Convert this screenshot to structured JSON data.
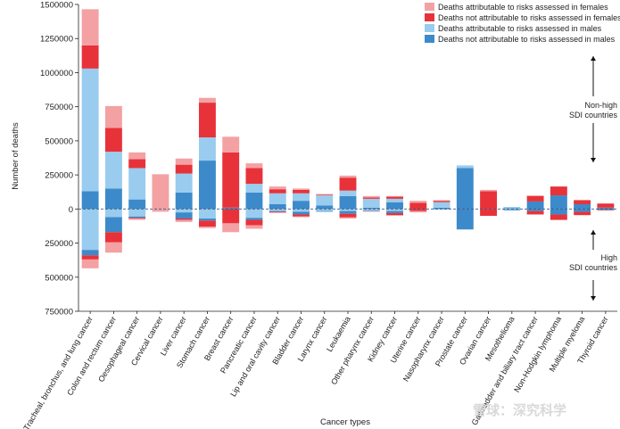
{
  "chart_data": {
    "type": "bar",
    "xlabel": "Cancer types",
    "ylabel": "Number of deaths",
    "ylim": [
      -750000,
      1500000
    ],
    "y_ticks": [
      -750000,
      -500000,
      -250000,
      0,
      250000,
      500000,
      750000,
      1000000,
      1250000,
      1500000
    ],
    "y_tick_labels": [
      "750000",
      "500000",
      "250000",
      "0",
      "250000",
      "500000",
      "750000",
      "1000000",
      "1250000",
      "1500000"
    ],
    "grid": false,
    "legend_position": "top-right",
    "categories": [
      "Tracheal, bronchus, and lung cancer",
      "Colon and rectum cancer",
      "Oesophageal cancer",
      "Cervical cancer",
      "Liver cancer",
      "Stomach cancer",
      "Breast cancer",
      "Pancreatic cancer",
      "Lip and oral cavity cancer",
      "Bladder cancer",
      "Larynx cancer",
      "Leukaemia",
      "Other pharynx cancer",
      "Kidney cancer",
      "Uterine cancer",
      "Nasopharynx cancer",
      "Prostate cancer",
      "Ovarian cancer",
      "Mesothelioma",
      "Gallbladder and biliary tract cancer",
      "Non-Hodgkin lymphoma",
      "Multiple myeloma",
      "Thyroid cancer"
    ],
    "series": [
      {
        "name": "Deaths attributable to risks assessed in females",
        "color": "#f4a1a4"
      },
      {
        "name": "Deaths not attributable to risks assessed in females",
        "color": "#e8323a"
      },
      {
        "name": "Deaths attributable to risks assessed in males",
        "color": "#99ccee"
      },
      {
        "name": "Deaths not attributable to risks assessed in males",
        "color": "#3d8acb"
      }
    ],
    "stacking_order_above_zero": [
      "Deaths not attributable to risks assessed in males",
      "Deaths attributable to risks assessed in males",
      "Deaths not attributable to risks assessed in females",
      "Deaths attributable to risks assessed in females"
    ],
    "stacking_order_below_zero": [
      "Deaths attributable to risks assessed in males",
      "Deaths not attributable to risks assessed in males",
      "Deaths not attributable to risks assessed in females",
      "Deaths attributable to risks assessed in females"
    ],
    "non_high_sdi": {
      "female_attributable": [
        265000,
        160000,
        50000,
        255000,
        45000,
        35000,
        115000,
        35000,
        20000,
        10000,
        5000,
        15000,
        10000,
        5000,
        15000,
        5000,
        0,
        10000,
        0,
        5000,
        0,
        0,
        0
      ],
      "female_not_attributable": [
        170000,
        175000,
        65000,
        0,
        65000,
        255000,
        405000,
        115000,
        30000,
        25000,
        5000,
        95000,
        10000,
        15000,
        45000,
        10000,
        0,
        130000,
        0,
        40000,
        65000,
        30000,
        30000
      ],
      "male_attributable": [
        900000,
        270000,
        230000,
        0,
        140000,
        170000,
        0,
        65000,
        80000,
        55000,
        75000,
        40000,
        65000,
        25000,
        0,
        40000,
        20000,
        0,
        10000,
        0,
        0,
        0,
        0
      ],
      "male_not_attributable": [
        130000,
        150000,
        70000,
        0,
        120000,
        355000,
        10000,
        120000,
        35000,
        60000,
        25000,
        95000,
        10000,
        50000,
        0,
        10000,
        300000,
        0,
        5000,
        55000,
        100000,
        35000,
        10000
      ]
    },
    "high_sdi": {
      "male_attributable": [
        300000,
        60000,
        55000,
        0,
        25000,
        70000,
        0,
        65000,
        15000,
        20000,
        15000,
        15000,
        10000,
        15000,
        0,
        5000,
        0,
        0,
        5000,
        0,
        0,
        0,
        0
      ],
      "male_not_attributable": [
        40000,
        110000,
        10000,
        0,
        45000,
        15000,
        0,
        15000,
        5000,
        20000,
        5000,
        20000,
        5000,
        15000,
        0,
        0,
        150000,
        0,
        5000,
        15000,
        40000,
        20000,
        5000
      ],
      "female_not_attributable": [
        30000,
        75000,
        5000,
        0,
        10000,
        45000,
        105000,
        40000,
        5000,
        15000,
        0,
        25000,
        0,
        15000,
        15000,
        0,
        0,
        50000,
        0,
        25000,
        40000,
        25000,
        5000
      ],
      "female_attributable": [
        65000,
        75000,
        10000,
        20000,
        15000,
        10000,
        65000,
        25000,
        5000,
        5000,
        0,
        10000,
        5000,
        5000,
        10000,
        0,
        0,
        0,
        0,
        0,
        0,
        0,
        0
      ]
    },
    "annotations": {
      "upper": "Non-high\nSDI countries",
      "lower": "High\nSDI countries"
    }
  },
  "watermark": "雪球：深究科学"
}
